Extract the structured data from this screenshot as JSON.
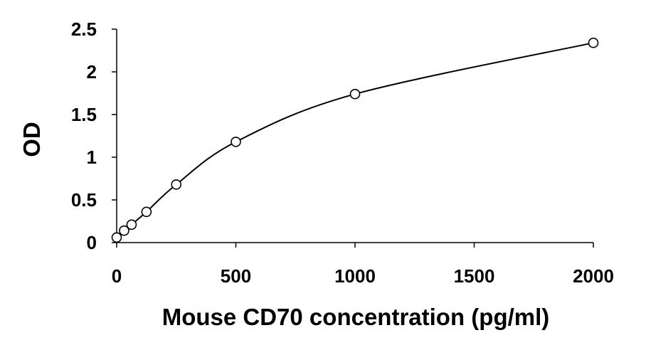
{
  "chart_data": {
    "type": "scatter",
    "title": "",
    "xlabel": "Mouse CD70 concentration (pg/ml)",
    "ylabel": "OD",
    "xlim": [
      0,
      2000
    ],
    "ylim": [
      0,
      2.5
    ],
    "x_ticks": [
      0,
      500,
      1000,
      1500,
      2000
    ],
    "y_ticks": [
      0,
      0.5,
      1,
      1.5,
      2,
      2.5
    ],
    "x_tick_labels": [
      "0",
      "500",
      "1000",
      "1500",
      "2000"
    ],
    "y_tick_labels": [
      "0",
      "0.5",
      "1",
      "1.5",
      "2",
      "2.5"
    ],
    "grid": false,
    "legend": "none",
    "marker": "open-circle",
    "fit_line": "smooth-curve",
    "series": [
      {
        "x": [
          0,
          31.25,
          62.5,
          125,
          250,
          500,
          1000,
          2000
        ],
        "y": [
          0.06,
          0.14,
          0.21,
          0.36,
          0.68,
          1.18,
          1.74,
          2.34
        ]
      }
    ],
    "colors": {
      "line": "#000000",
      "marker_stroke": "#000000",
      "axis": "#000000"
    }
  }
}
